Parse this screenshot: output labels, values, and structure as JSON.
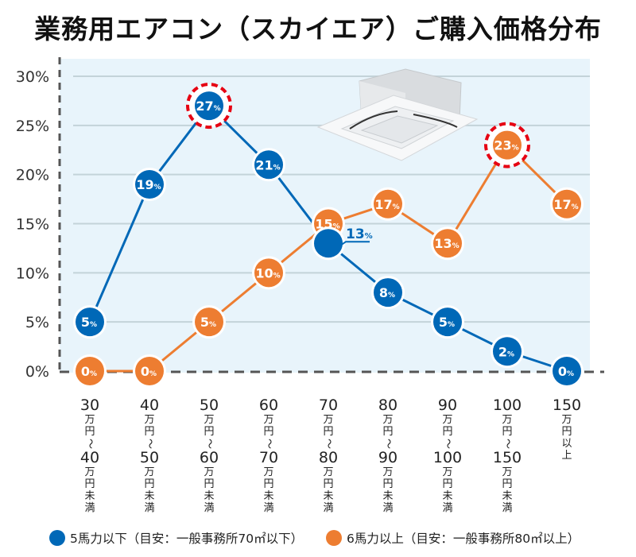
{
  "chart_data": {
    "type": "line",
    "title": "業務用エアコン（スカイエア）ご購入価格分布",
    "xlabel": "",
    "ylabel": "",
    "ylim": [
      0,
      30
    ],
    "yticks": [
      0,
      5,
      10,
      15,
      20,
      25,
      30
    ],
    "ytick_labels": [
      "0%",
      "5%",
      "10%",
      "15%",
      "20%",
      "25%",
      "30%"
    ],
    "grid": true,
    "legend_position": "bottom",
    "categories": [
      {
        "top": "30",
        "mid": "万円〜",
        "bottom": "40",
        "suffix": "万円未満"
      },
      {
        "top": "40",
        "mid": "万円〜",
        "bottom": "50",
        "suffix": "万円未満"
      },
      {
        "top": "50",
        "mid": "万円〜",
        "bottom": "60",
        "suffix": "万円未満"
      },
      {
        "top": "60",
        "mid": "万円〜",
        "bottom": "70",
        "suffix": "万円未満"
      },
      {
        "top": "70",
        "mid": "万円〜",
        "bottom": "80",
        "suffix": "万円未満"
      },
      {
        "top": "80",
        "mid": "万円〜",
        "bottom": "90",
        "suffix": "万円未満"
      },
      {
        "top": "90",
        "mid": "万円〜",
        "bottom": "100",
        "suffix": "万円未満"
      },
      {
        "top": "100",
        "mid": "万円〜",
        "bottom": "150",
        "suffix": "万円未満"
      },
      {
        "top": "150",
        "mid": "万円以上",
        "bottom": "",
        "suffix": ""
      }
    ],
    "series": [
      {
        "name": "5馬力以下（目安：一般事務所70㎡以下）",
        "color": "#0068b7",
        "values": [
          5,
          19,
          27,
          21,
          13,
          8,
          5,
          2,
          0
        ],
        "highlight_index": 2,
        "external_label_index": 4
      },
      {
        "name": "6馬力以上（目安：一般事務所80㎡以上）",
        "color": "#ed7d31",
        "values": [
          0,
          0,
          5,
          10,
          15,
          17,
          13,
          23,
          17
        ],
        "highlight_index": 7
      }
    ],
    "value_suffix": "%",
    "highlight_color": "#e60012",
    "plot_background": "#e8f4fb",
    "image": "ceiling-cassette-air-conditioner"
  },
  "legend": [
    {
      "label": "5馬力以下（目安：一般事務所70㎡以下）",
      "color": "#0068b7"
    },
    {
      "label": "6馬力以上（目安：一般事務所80㎡以上）",
      "color": "#ed7d31"
    }
  ]
}
